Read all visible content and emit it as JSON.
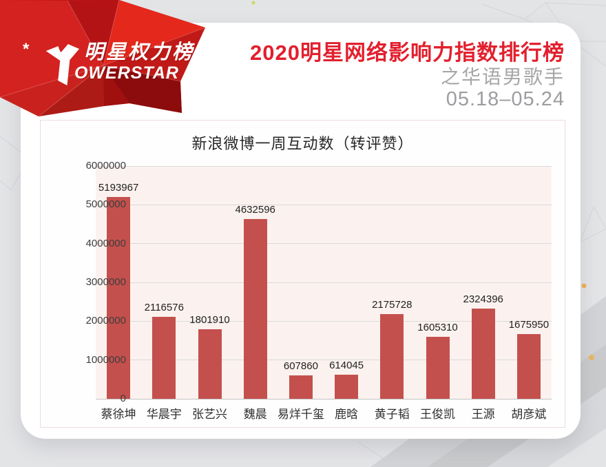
{
  "brand": {
    "star_mark": "*",
    "logo_cn": "明星权力榜",
    "logo_en_rest": "OWERSTAR"
  },
  "header": {
    "title": "2020明星网络影响力指数排行榜",
    "subtitle": "之华语男歌手",
    "date_range": "05.18–05.24"
  },
  "colors": {
    "accent_red": "#e2202e",
    "bar_red": "#c4504d",
    "gem_red": "#c11717",
    "muted_gray": "#9c9da0"
  },
  "chart_data": {
    "type": "bar",
    "title": "新浪微博一周互动数（转评赞）",
    "categories": [
      "蔡徐坤",
      "华晨宇",
      "张艺兴",
      "魏晨",
      "易烊千玺",
      "鹿晗",
      "黄子韬",
      "王俊凯",
      "王源",
      "胡彦斌"
    ],
    "values": [
      5193967,
      2116576,
      1801910,
      4632596,
      607860,
      614045,
      2175728,
      1605310,
      2324396,
      1675950
    ],
    "xlabel": "",
    "ylabel": "",
    "ylim": [
      0,
      6000000
    ],
    "yticks": [
      0,
      1000000,
      2000000,
      3000000,
      4000000,
      5000000,
      6000000
    ],
    "grid": true,
    "legend": "none",
    "bar_color": "#c4504d"
  }
}
